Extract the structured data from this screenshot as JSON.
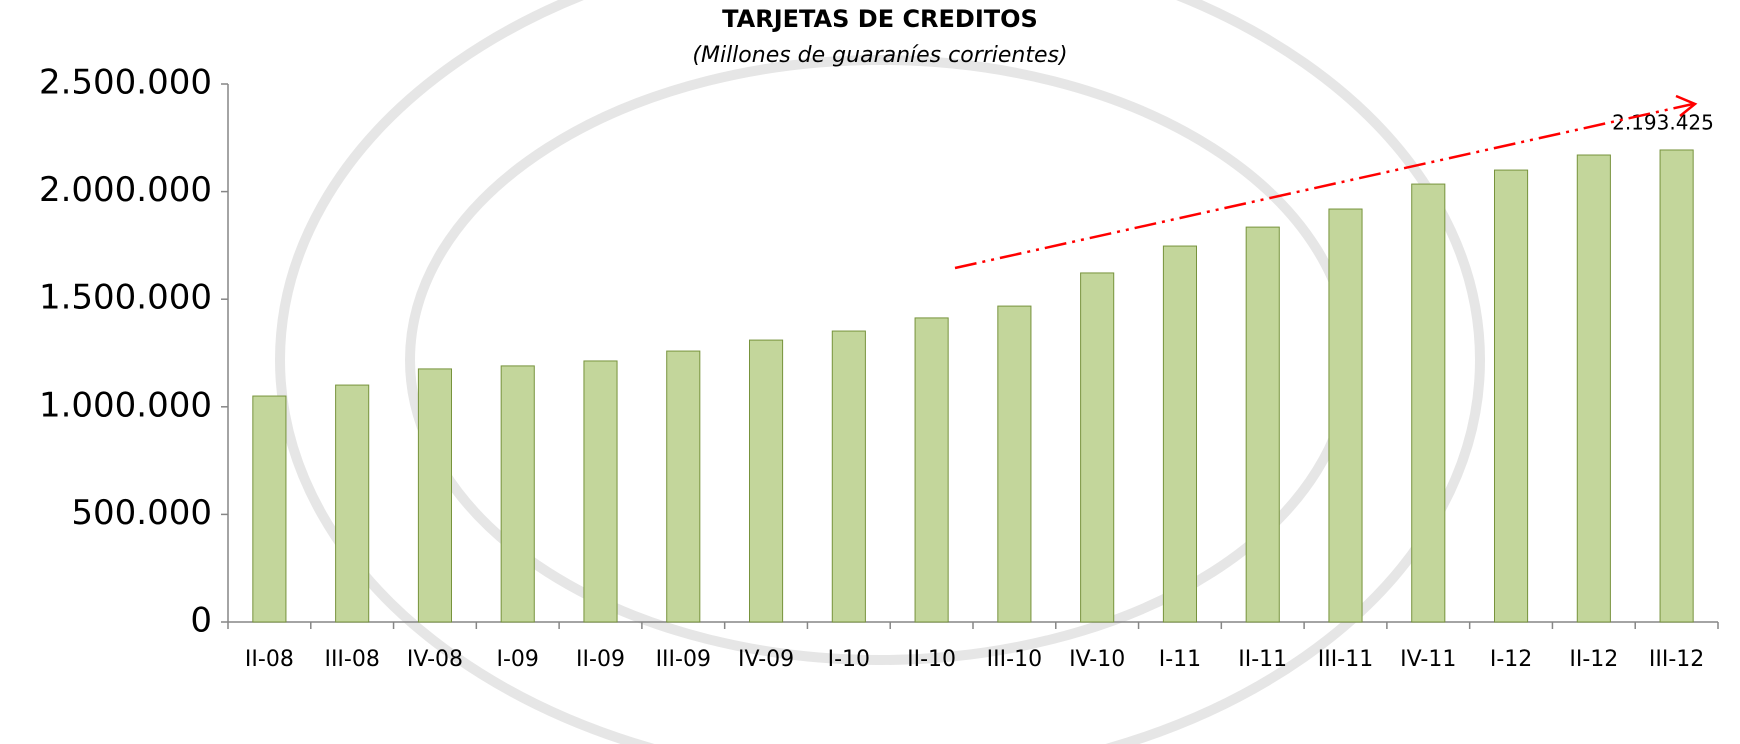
{
  "chart_data": {
    "type": "bar",
    "title": "TARJETAS DE CREDITOS",
    "subtitle": "(Millones de guaraníes corrientes)",
    "categories": [
      "II-08",
      "III-08",
      "IV-08",
      "I-09",
      "II-09",
      "III-09",
      "IV-09",
      "I-10",
      "II-10",
      "III-10",
      "IV-10",
      "I-11",
      "II-11",
      "III-11",
      "IV-11",
      "I-12",
      "II-12",
      "III-12"
    ],
    "values": [
      1050000,
      1101000,
      1176000,
      1190000,
      1213000,
      1259000,
      1310000,
      1352000,
      1413000,
      1468000,
      1622000,
      1747000,
      1835000,
      1919000,
      2035000,
      2100000,
      2170000,
      2193425
    ],
    "value_labels": [
      null,
      null,
      null,
      null,
      null,
      null,
      null,
      null,
      null,
      null,
      null,
      null,
      null,
      null,
      null,
      null,
      null,
      "2.193.425"
    ],
    "color": "#c3d69b",
    "edge_color": "#77933c",
    "ylim": [
      0,
      2500000
    ],
    "yticks": [
      0,
      {
        "value": 500000,
        "label": "500.000"
      },
      {
        "value": 1000000,
        "label": "1.000.000"
      },
      {
        "value": 1500000,
        "label": "1.500.000"
      },
      {
        "value": 2000000,
        "label": "2.000.000"
      },
      {
        "value": 2500000,
        "label": "2.500.000"
      }
    ],
    "grid": false
  }
}
